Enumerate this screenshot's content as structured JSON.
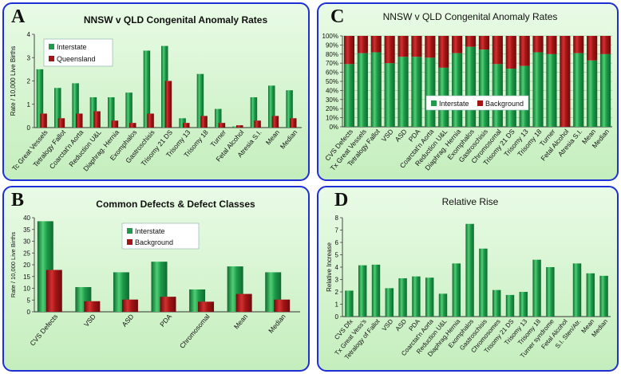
{
  "colors": {
    "interstate": "#1e9a4a",
    "queensland": "#a31515",
    "background": "#a31515",
    "panel_border": "#1f2fd6"
  },
  "panels": {
    "A": "A",
    "B": "B",
    "C": "C",
    "D": "D"
  },
  "chart_data": [
    {
      "id": "A",
      "type": "bar",
      "title": "NNSW v QLD Congenital Anomaly Rates",
      "ylabel": "Rate / 10,000 Live Births",
      "ylim": [
        0,
        4
      ],
      "yticks": [
        0,
        1,
        2,
        3,
        4
      ],
      "legend_position": "top-left",
      "categories": [
        "Tc Great Vessels",
        "Tetralogy Fallot",
        "Coarctat'n Aorta",
        "Reduction U&L",
        "Diaphrag. Hernia",
        "Exomphalos",
        "Gastroschisis",
        "Trisomy 21 DS",
        "Trisomy 13",
        "Trisomy 18",
        "Turner",
        "Fetal Alcohol",
        "Atresia S.I.",
        "Mean",
        "Median"
      ],
      "series": [
        {
          "name": "Interstate",
          "values": [
            2.5,
            1.7,
            1.9,
            1.3,
            1.3,
            1.5,
            3.3,
            3.5,
            0.4,
            2.3,
            0.8,
            0.05,
            1.3,
            1.8,
            1.6
          ]
        },
        {
          "name": "Queensland",
          "values": [
            0.6,
            0.4,
            0.6,
            0.7,
            0.3,
            0.2,
            0.6,
            2.0,
            0.2,
            0.5,
            0.2,
            0.1,
            0.3,
            0.5,
            0.4
          ]
        }
      ]
    },
    {
      "id": "B",
      "type": "bar",
      "title": "Common Defects & Defect Classes",
      "ylabel": "Rate / 10,000 Live Births",
      "ylim": [
        0,
        40
      ],
      "yticks": [
        0,
        5,
        10,
        15,
        20,
        25,
        30,
        35,
        40
      ],
      "legend_position": "top-center",
      "categories": [
        "CVS Defects",
        "VSD",
        "ASD",
        "PDA",
        "Chromosomal",
        "Mean",
        "Median"
      ],
      "series": [
        {
          "name": "Interstate",
          "values": [
            38.5,
            10.5,
            16.8,
            21.3,
            9.5,
            19.3,
            16.8
          ]
        },
        {
          "name": "Background",
          "values": [
            17.8,
            4.5,
            5.2,
            6.4,
            4.3,
            7.6,
            5.2
          ]
        }
      ]
    },
    {
      "id": "C",
      "type": "bar",
      "title": "NNSW v QLD Congenital Anomaly Rates",
      "stacked_percent": true,
      "ylim": [
        0,
        100
      ],
      "yticks": [
        "0%",
        "10%",
        "20%",
        "30%",
        "40%",
        "50%",
        "60%",
        "70%",
        "80%",
        "90%",
        "100%"
      ],
      "legend_position": "center",
      "categories": [
        "CVS Defects",
        "Tx Great Vessels",
        "Tetralogy Fallot",
        "VSD",
        "ASD",
        "PDA",
        "Coarctat'n Aorta",
        "Reduction U&L",
        "Diaphrag. Hernia",
        "Exomphalos",
        "Gastroschisis",
        "Chromosomal",
        "Trisomy 21 DS",
        "Trisomy 13",
        "Trisomy 18",
        "Turner",
        "Fetal Alcohol",
        "Atresia S.I.",
        "Mean",
        "Median"
      ],
      "series": [
        {
          "name": "Interstate",
          "values": [
            69,
            81,
            82,
            70,
            77,
            77,
            76,
            65,
            81,
            88,
            85,
            69,
            64,
            67,
            82,
            80,
            0,
            81,
            73,
            80
          ]
        },
        {
          "name": "Background",
          "values": [
            31,
            19,
            18,
            30,
            23,
            23,
            24,
            35,
            19,
            12,
            15,
            31,
            36,
            33,
            18,
            20,
            100,
            19,
            27,
            20
          ]
        }
      ]
    },
    {
      "id": "D",
      "type": "bar",
      "title": "Relative Rise",
      "ylabel": "Relative Increase",
      "ylim": [
        0,
        8
      ],
      "yticks": [
        0,
        1,
        2,
        3,
        4,
        5,
        6,
        7,
        8
      ],
      "categories": [
        "CVS Dfx",
        "Tx Great Vess's",
        "Tetralogy of Fallot",
        "VSD",
        "ASD",
        "PDA",
        "Coarctat'n Aorta",
        "Reduction U&L",
        "Diaphrag.Hernia",
        "Exomphalos",
        "Gastroschisis",
        "Chromosomes",
        "Trisomy 21 DS",
        "Trisomy 13",
        "Trisomy 18",
        "Turner syndrome",
        "Fetal Alcohol",
        "S.I. Sten/Atr.",
        "Mean",
        "Median"
      ],
      "series": [
        {
          "name": "Relative Rise",
          "values": [
            2.1,
            4.15,
            4.2,
            2.3,
            3.1,
            3.25,
            3.15,
            1.85,
            4.3,
            7.5,
            5.5,
            2.15,
            1.75,
            2.0,
            4.6,
            4.0,
            null,
            4.3,
            3.5,
            3.3
          ]
        }
      ]
    }
  ]
}
